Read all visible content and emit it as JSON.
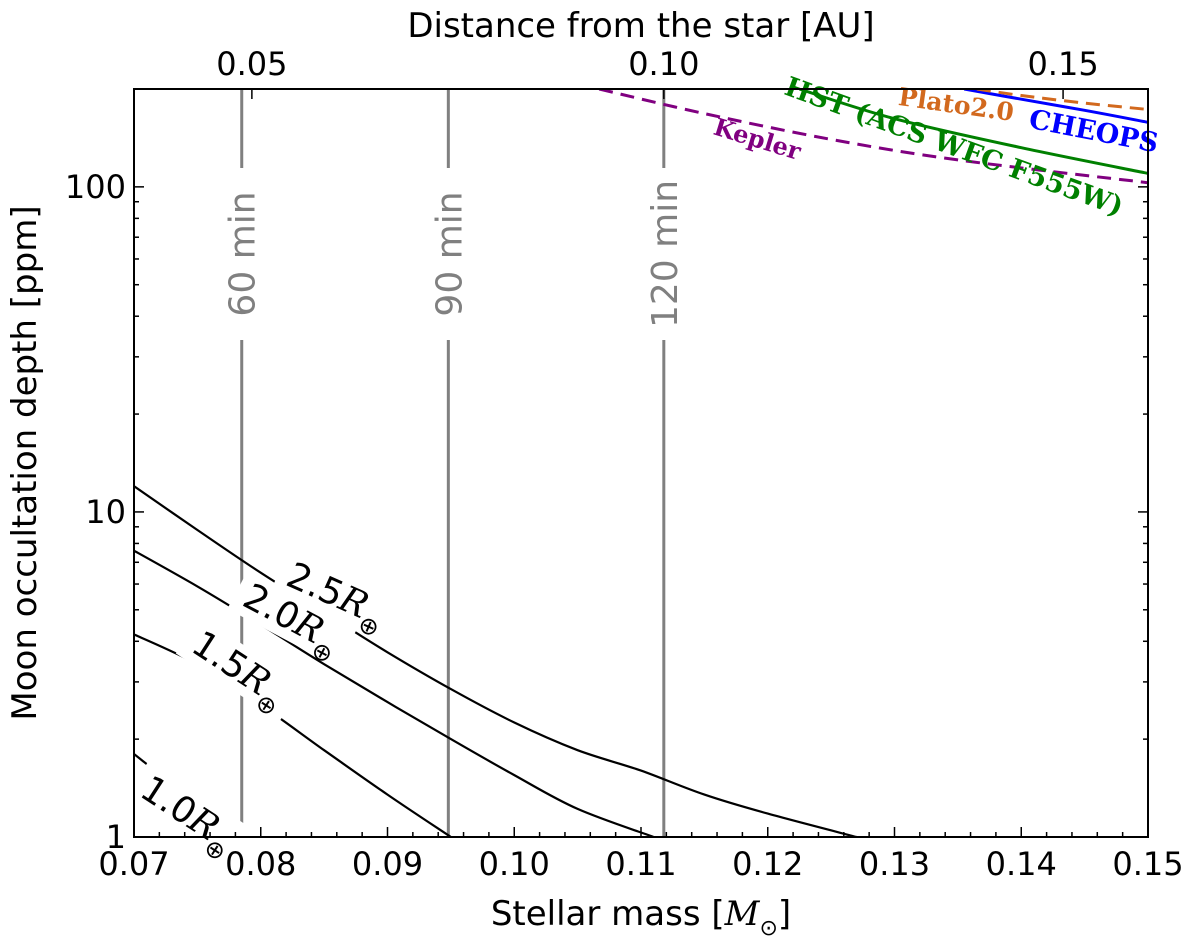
{
  "chart_data": {
    "type": "line",
    "title": "",
    "xlabel": "Stellar mass [",
    "xlabel_math": "M",
    "xlabel_sub": "⊙",
    "xlabel_end": "]",
    "x2label": "Distance from the star [AU]",
    "ylabel": "Moon occultation depth [ppm]",
    "xlim": [
      0.07,
      0.15
    ],
    "ylim": [
      1,
      200
    ],
    "yscale": "log",
    "grid": false,
    "x_ticks": [
      "0.07",
      "0.08",
      "0.09",
      "0.10",
      "0.11",
      "0.12",
      "0.13",
      "0.14",
      "0.15"
    ],
    "x2_ticks": [
      {
        "label": "0.05",
        "mass": 0.0793
      },
      {
        "label": "0.10",
        "mass": 0.1118
      },
      {
        "label": "0.15",
        "mass": 0.1433
      }
    ],
    "y_ticks": [
      "1",
      "10",
      "100"
    ],
    "duration_lines": [
      {
        "label": "60 min",
        "mass": 0.0785
      },
      {
        "label": "90 min",
        "mass": 0.0948
      },
      {
        "label": "120 min",
        "mass": 0.1118
      }
    ],
    "moon_curves": [
      {
        "label": "1.0",
        "math": "R",
        "sub": "⊕",
        "x": [
          0.07,
          0.073,
          0.0765,
          0.078
        ],
        "y": [
          1.8,
          1.45,
          1.1,
          1.0
        ]
      },
      {
        "label": "1.5",
        "math": "R",
        "sub": "⊕",
        "x": [
          0.07,
          0.075,
          0.08,
          0.085,
          0.09,
          0.095
        ],
        "y": [
          4.2,
          3.4,
          2.55,
          1.85,
          1.35,
          1.0
        ]
      },
      {
        "label": "2.0",
        "math": "R",
        "sub": "⊕",
        "x": [
          0.07,
          0.075,
          0.08,
          0.085,
          0.09,
          0.095,
          0.1,
          0.105,
          0.111
        ],
        "y": [
          7.6,
          5.9,
          4.5,
          3.4,
          2.6,
          2.0,
          1.55,
          1.22,
          1.0
        ]
      },
      {
        "label": "2.5",
        "math": "R",
        "sub": "⊕",
        "x": [
          0.07,
          0.075,
          0.08,
          0.085,
          0.09,
          0.095,
          0.1,
          0.105,
          0.11,
          0.115,
          0.12,
          0.127
        ],
        "y": [
          12.0,
          8.8,
          6.5,
          4.9,
          3.7,
          2.85,
          2.25,
          1.85,
          1.6,
          1.35,
          1.18,
          1.0
        ]
      }
    ],
    "detection_limits": [
      {
        "name": "Kepler",
        "color": "#800080",
        "style": "dashed",
        "x": [
          0.1067,
          0.115,
          0.125,
          0.135,
          0.15
        ],
        "y": [
          200,
          168,
          140,
          121,
          103
        ]
      },
      {
        "name": "HST (ACS WFC F555W)",
        "color": "#008000",
        "style": "solid",
        "x": [
          0.1225,
          0.13,
          0.14,
          0.15
        ],
        "y": [
          200,
          162,
          132,
          110
        ]
      },
      {
        "name": "CHEOPS",
        "color": "#0000ff",
        "style": "solid",
        "x": [
          0.1355,
          0.14,
          0.145,
          0.15
        ],
        "y": [
          200,
          186,
          172,
          158
        ]
      },
      {
        "name": "Plato2.0",
        "color": "#d2691e",
        "style": "dashed",
        "x": [
          0.1365,
          0.14,
          0.145,
          0.15
        ],
        "y": [
          200,
          191,
          181,
          173
        ]
      }
    ],
    "duration_color": "#808080",
    "curve_color": "#000000"
  }
}
